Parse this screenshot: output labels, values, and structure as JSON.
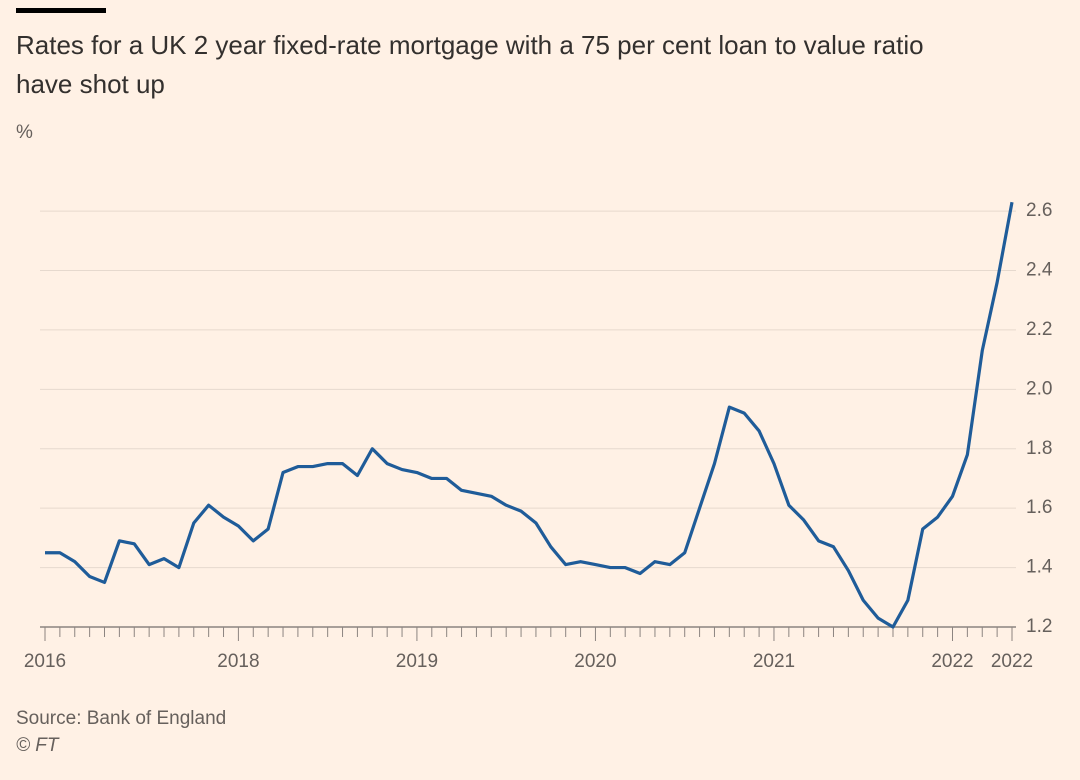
{
  "chart_data": {
    "type": "line",
    "title": "Rates for a UK 2 year fixed-rate mortgage with a 75 per cent loan to value ratio have shot up",
    "y_label": "%",
    "source": "Source: Bank of England",
    "credit": "© FT",
    "categories": [
      "2016",
      null,
      null,
      null,
      null,
      null,
      null,
      null,
      null,
      null,
      null,
      null,
      null,
      "2018",
      null,
      null,
      null,
      null,
      null,
      null,
      null,
      null,
      null,
      null,
      null,
      "2019",
      null,
      null,
      null,
      null,
      null,
      null,
      null,
      null,
      null,
      null,
      null,
      "2020",
      null,
      null,
      null,
      null,
      null,
      null,
      null,
      null,
      null,
      null,
      null,
      "2021",
      null,
      null,
      null,
      null,
      null,
      null,
      null,
      null,
      null,
      null,
      null,
      "2022",
      null,
      null,
      null,
      "2022"
    ],
    "series": [
      {
        "name": "2 year fixed-rate mortgage, 75% LTV",
        "color": "#1f5c99",
        "values": [
          1.45,
          1.45,
          1.42,
          1.37,
          1.35,
          1.49,
          1.48,
          1.41,
          1.43,
          1.4,
          1.55,
          1.61,
          1.57,
          1.54,
          1.49,
          1.53,
          1.72,
          1.74,
          1.74,
          1.75,
          1.75,
          1.71,
          1.8,
          1.75,
          1.73,
          1.72,
          1.7,
          1.7,
          1.66,
          1.65,
          1.64,
          1.61,
          1.59,
          1.55,
          1.47,
          1.41,
          1.42,
          1.41,
          1.4,
          1.4,
          1.38,
          1.42,
          1.41,
          1.45,
          1.6,
          1.75,
          1.94,
          1.92,
          1.86,
          1.75,
          1.61,
          1.56,
          1.49,
          1.47,
          1.39,
          1.29,
          1.23,
          1.2,
          1.29,
          1.53,
          1.57,
          1.64,
          1.78,
          2.13,
          2.36,
          2.63
        ]
      }
    ],
    "ylim": [
      1.2,
      2.74
    ],
    "yticks": [
      1.2,
      1.4,
      1.6,
      1.8,
      {
        "value": 2,
        "label": "2.0"
      },
      2.2,
      2.4,
      2.6
    ],
    "grid": true
  }
}
